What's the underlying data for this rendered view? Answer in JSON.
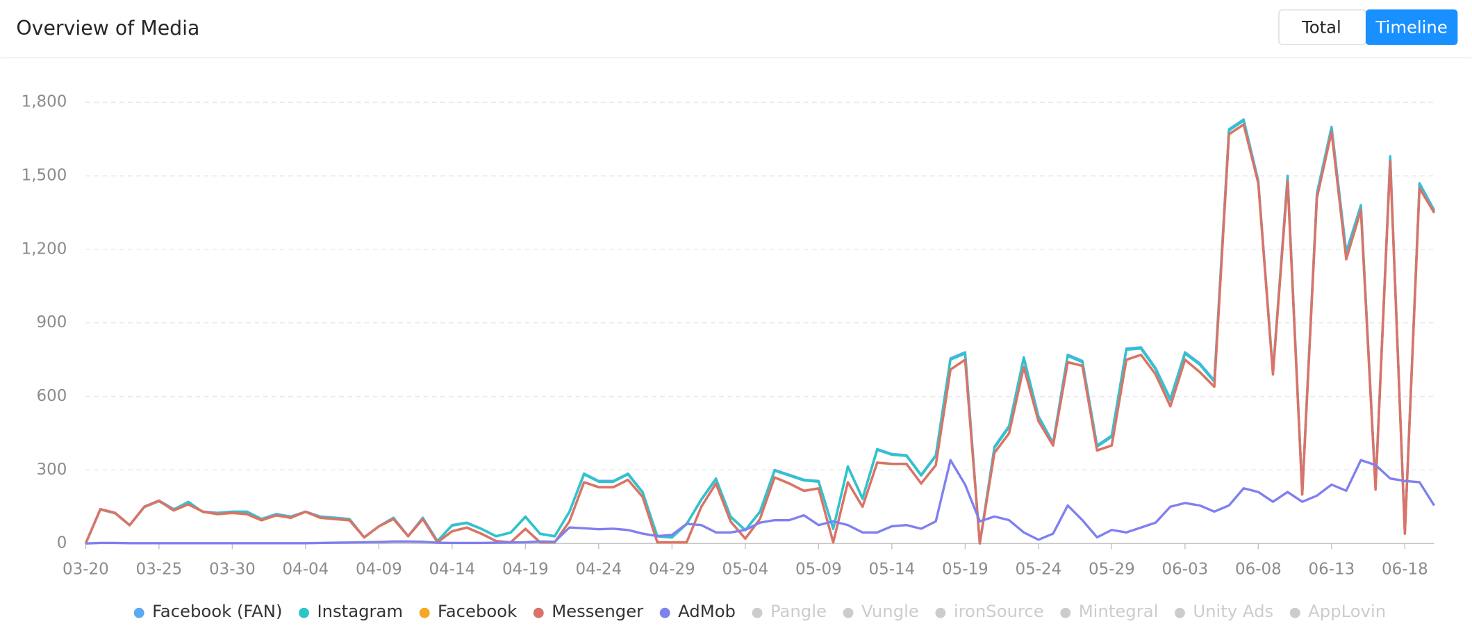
{
  "header": {
    "title": "Overview of Media",
    "buttons": [
      "Total",
      "Timeline"
    ],
    "active_button": "Timeline"
  },
  "chart_data": {
    "type": "line",
    "x": [
      "03-20",
      "03-21",
      "03-22",
      "03-23",
      "03-24",
      "03-25",
      "03-26",
      "03-27",
      "03-28",
      "03-29",
      "03-30",
      "03-31",
      "04-01",
      "04-02",
      "04-03",
      "04-04",
      "04-05",
      "04-06",
      "04-07",
      "04-08",
      "04-09",
      "04-10",
      "04-11",
      "04-12",
      "04-13",
      "04-14",
      "04-15",
      "04-16",
      "04-17",
      "04-18",
      "04-19",
      "04-20",
      "04-21",
      "04-22",
      "04-23",
      "04-24",
      "04-25",
      "04-26",
      "04-27",
      "04-28",
      "04-29",
      "04-30",
      "05-01",
      "05-02",
      "05-03",
      "05-04",
      "05-05",
      "05-06",
      "05-07",
      "05-08",
      "05-09",
      "05-10",
      "05-11",
      "05-12",
      "05-13",
      "05-14",
      "05-15",
      "05-16",
      "05-17",
      "05-18",
      "05-19",
      "05-20",
      "05-21",
      "05-22",
      "05-23",
      "05-24",
      "05-25",
      "05-26",
      "05-27",
      "05-28",
      "05-29",
      "05-30",
      "05-31",
      "06-01",
      "06-02",
      "06-03",
      "06-04",
      "06-05",
      "06-06",
      "06-07",
      "06-08",
      "06-09",
      "06-10",
      "06-11",
      "06-12",
      "06-13",
      "06-14",
      "06-15",
      "06-16",
      "06-17",
      "06-18",
      "06-19",
      "06-20"
    ],
    "xticks": [
      "03-20",
      "03-25",
      "03-30",
      "04-04",
      "04-09",
      "04-14",
      "04-19",
      "04-24",
      "04-29",
      "05-04",
      "05-09",
      "05-14",
      "05-19",
      "05-24",
      "05-29",
      "06-03",
      "06-08",
      "06-13",
      "06-18"
    ],
    "ylim": [
      0,
      1800
    ],
    "yticks": [
      0,
      300,
      600,
      900,
      {
        "value": 1200,
        "label": "1,200"
      },
      {
        "value": 1500,
        "label": "1,500"
      },
      {
        "value": 1800,
        "label": "1,800"
      }
    ],
    "grid": true,
    "series": [
      {
        "name": "Facebook (FAN)",
        "color": "#5aa9f2",
        "values": [
          0,
          140,
          125,
          75,
          150,
          175,
          140,
          160,
          130,
          125,
          130,
          130,
          100,
          120,
          110,
          130,
          110,
          105,
          100,
          25,
          70,
          105,
          30,
          105,
          10,
          75,
          85,
          60,
          30,
          45,
          110,
          40,
          30,
          130,
          285,
          255,
          255,
          285,
          210,
          30,
          25,
          80,
          180,
          265,
          110,
          55,
          130,
          300,
          280,
          260,
          255,
          60,
          315,
          185,
          385,
          365,
          360,
          280,
          360,
          755,
          780,
          0,
          395,
          480,
          760,
          520,
          410,
          770,
          745,
          400,
          440,
          795,
          800,
          715,
          590,
          780,
          735,
          665,
          1690,
          1730,
          1480,
          700,
          1500,
          210,
          1430,
          1700,
          1190,
          1380,
          230,
          1580,
          45,
          1470,
          1360
        ]
      },
      {
        "name": "Instagram",
        "color": "#2ec5c8",
        "values": [
          0,
          138,
          123,
          74,
          148,
          172,
          138,
          170,
          128,
          123,
          128,
          128,
          99,
          118,
          108,
          128,
          108,
          103,
          98,
          24,
          69,
          103,
          29,
          103,
          9,
          73,
          83,
          59,
          29,
          44,
          108,
          39,
          29,
          128,
          282,
          252,
          252,
          282,
          207,
          29,
          24,
          79,
          178,
          262,
          108,
          54,
          128,
          297,
          277,
          257,
          252,
          59,
          312,
          182,
          382,
          362,
          357,
          277,
          357,
          750,
          775,
          0,
          390,
          475,
          755,
          515,
          405,
          765,
          740,
          395,
          435,
          790,
          795,
          710,
          585,
          775,
          730,
          660,
          1685,
          1725,
          1475,
          695,
          1495,
          205,
          1425,
          1695,
          1185,
          1375,
          225,
          1575,
          42,
          1465,
          1355
        ]
      },
      {
        "name": "Facebook",
        "color": "#f5a623",
        "values": [
          0,
          139,
          124,
          74,
          149,
          174,
          134,
          159,
          129,
          119,
          124,
          119,
          94,
          114,
          104,
          129,
          104,
          99,
          94,
          24,
          69,
          99,
          29,
          99,
          4,
          49,
          64,
          39,
          9,
          4,
          59,
          4,
          4,
          89,
          249,
          229,
          229,
          259,
          189,
          4,
          4,
          4,
          149,
          244,
          89,
          19,
          99,
          269,
          244,
          214,
          224,
          4,
          249,
          149,
          329,
          324,
          324,
          244,
          319,
          709,
          749,
          0,
          369,
          449,
          719,
          499,
          399,
          739,
          724,
          379,
          399,
          749,
          769,
          689,
          559,
          749,
          699,
          639,
          1669,
          1709,
          1469,
          689,
          1479,
          199,
          1409,
          1679,
          1159,
          1359,
          219,
          1559,
          39,
          1449,
          1349
        ]
      },
      {
        "name": "Messenger",
        "color": "#d9726d",
        "values": [
          0,
          140,
          125,
          75,
          150,
          175,
          135,
          160,
          130,
          120,
          125,
          120,
          95,
          115,
          105,
          130,
          105,
          100,
          95,
          25,
          70,
          100,
          30,
          100,
          5,
          50,
          65,
          40,
          10,
          5,
          60,
          5,
          5,
          90,
          250,
          230,
          230,
          260,
          190,
          5,
          5,
          5,
          150,
          245,
          90,
          20,
          100,
          270,
          245,
          215,
          225,
          5,
          250,
          150,
          330,
          325,
          325,
          245,
          320,
          710,
          750,
          0,
          370,
          450,
          720,
          500,
          400,
          740,
          725,
          380,
          400,
          750,
          770,
          690,
          560,
          750,
          700,
          640,
          1670,
          1710,
          1470,
          690,
          1480,
          200,
          1410,
          1680,
          1160,
          1360,
          220,
          1560,
          40,
          1450,
          1350
        ]
      },
      {
        "name": "AdMob",
        "color": "#7f80ef",
        "values": [
          0,
          2,
          2,
          1,
          1,
          1,
          1,
          1,
          1,
          1,
          1,
          1,
          1,
          1,
          1,
          1,
          2,
          3,
          4,
          5,
          6,
          8,
          8,
          7,
          3,
          2,
          2,
          2,
          3,
          4,
          5,
          8,
          7,
          65,
          62,
          58,
          60,
          55,
          40,
          30,
          35,
          80,
          75,
          45,
          45,
          55,
          85,
          95,
          95,
          115,
          75,
          90,
          75,
          45,
          45,
          70,
          75,
          60,
          90,
          340,
          240,
          90,
          110,
          95,
          45,
          15,
          40,
          155,
          95,
          25,
          55,
          45,
          65,
          85,
          150,
          165,
          155,
          130,
          155,
          225,
          210,
          170,
          210,
          170,
          195,
          240,
          215,
          340,
          320,
          265,
          255,
          250,
          155
        ]
      }
    ],
    "inactive_series": [
      "Pangle",
      "Vungle",
      "ironSource",
      "Mintegral",
      "Unity Ads",
      "AppLovin"
    ],
    "inactive_color": "#cccccc"
  }
}
